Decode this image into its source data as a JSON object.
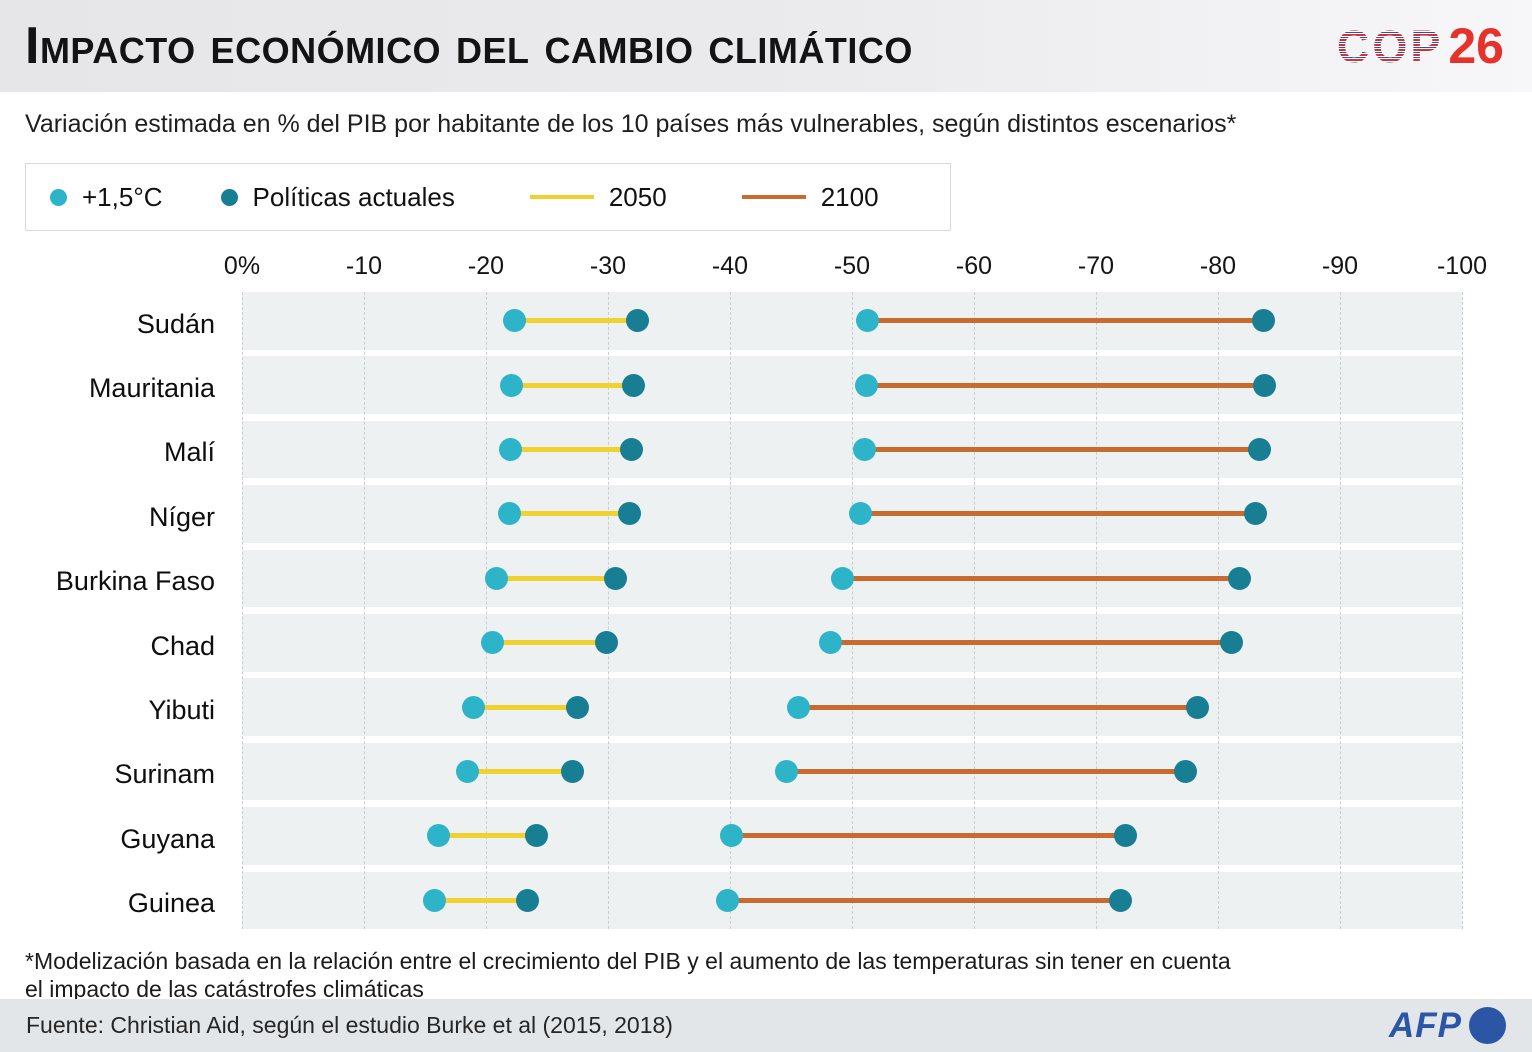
{
  "header": {
    "title": "Impacto económico del cambio climático",
    "logo": {
      "cop": "COP",
      "num": "26"
    }
  },
  "subtitle": "Variación estimada en % del PIB por habitante de los 10 países más vulnerables, según distintos escenarios*",
  "legend": {
    "dot_items": [
      {
        "label": "+1,5°C",
        "color": "#2db4c8"
      },
      {
        "label": "Políticas actuales",
        "color": "#187e93"
      }
    ],
    "line_items": [
      {
        "label": "2050",
        "color": "#f0d12f"
      },
      {
        "label": "2100",
        "color": "#c96b2e"
      }
    ]
  },
  "chart_data": {
    "type": "dumbbell",
    "title": "Impacto económico del cambio climático",
    "xlabel": "Variación estimada en % del PIB por habitante",
    "xlim": [
      0,
      -100
    ],
    "x_ticks": [
      "0%",
      "-10",
      "-20",
      "-30",
      "-40",
      "-50",
      "-60",
      "-70",
      "-80",
      "-90",
      "-100"
    ],
    "grid": "vertical-dashed",
    "legend_position": "top",
    "categories": [
      "Sudán",
      "Mauritania",
      "Malí",
      "Níger",
      "Burkina Faso",
      "Chad",
      "Yibuti",
      "Surinam",
      "Guyana",
      "Guinea"
    ],
    "series": [
      {
        "name": "+1,5°C — 2050",
        "values": [
          -22.3,
          -22.1,
          -22.0,
          -21.9,
          -20.9,
          -20.5,
          -19.0,
          -18.5,
          -16.1,
          -15.8
        ]
      },
      {
        "name": "Políticas actuales — 2050",
        "values": [
          -32.4,
          -32.1,
          -31.9,
          -31.8,
          -30.6,
          -29.9,
          -27.5,
          -27.1,
          -24.1,
          -23.4
        ]
      },
      {
        "name": "+1,5°C — 2100",
        "values": [
          -51.3,
          -51.2,
          -51.0,
          -50.7,
          -49.2,
          -48.2,
          -45.6,
          -44.6,
          -40.1,
          -39.8
        ]
      },
      {
        "name": "Políticas actuales — 2100",
        "values": [
          -83.7,
          -83.8,
          -83.4,
          -83.1,
          -81.8,
          -81.1,
          -78.3,
          -77.3,
          -72.4,
          -72.0
        ]
      }
    ],
    "colors": {
      "dot_plus15": "#2db4c8",
      "dot_politicas": "#187e93",
      "line_2050": "#f0d12f",
      "line_2100": "#c96b2e",
      "band": "#edf1f2",
      "gridline": "#c9ced3"
    }
  },
  "footnote": {
    "line1": "*Modelización basada en la relación entre el crecimiento del PIB y el aumento de las temperaturas sin tener en cuenta",
    "line2": "el impacto de las catástrofes climáticas"
  },
  "source": {
    "text": "Fuente: Christian Aid, según el estudio Burke et al (2015, 2018)",
    "agency": "AFP"
  }
}
